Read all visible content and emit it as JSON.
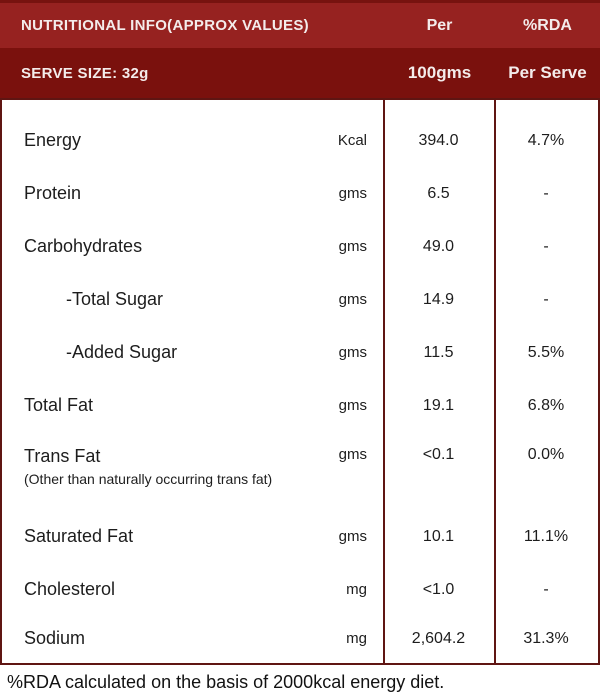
{
  "header": {
    "row1": {
      "title": "NUTRITIONAL INFO(APPROX VALUES)",
      "col2": "Per",
      "col3": "%RDA"
    },
    "row2": {
      "title": "SERVE SIZE: 32g",
      "col2": "100gms",
      "col3": "Per Serve"
    }
  },
  "rows": [
    {
      "label": "Energy",
      "unit": "Kcal",
      "per100": "394.0",
      "rda": "4.7%"
    },
    {
      "label": "Protein",
      "unit": "gms",
      "per100": "6.5",
      "rda": "-"
    },
    {
      "label": "Carbohydrates",
      "unit": "gms",
      "per100": "49.0",
      "rda": "-"
    },
    {
      "label": "-Total Sugar",
      "unit": "gms",
      "per100": "14.9",
      "rda": "-"
    },
    {
      "label": "-Added Sugar",
      "unit": "gms",
      "per100": "11.5",
      "rda": "5.5%"
    },
    {
      "label": "Total Fat",
      "unit": "gms",
      "per100": "19.1",
      "rda": "6.8%"
    },
    {
      "label": "Trans Fat",
      "note": "(Other than naturally occurring trans fat)",
      "unit": "gms",
      "per100": "<0.1",
      "rda": "0.0%"
    },
    {
      "label": "Saturated Fat",
      "unit": "gms",
      "per100": "10.1",
      "rda": "11.1%"
    },
    {
      "label": "Cholesterol",
      "unit": "mg",
      "per100": "<1.0",
      "rda": "-"
    },
    {
      "label": "Sodium",
      "unit": "mg",
      "per100": "2,604.2",
      "rda": "31.3%"
    }
  ],
  "footer": {
    "note": "%RDA calculated on the basis of 2000kcal energy diet."
  },
  "colors": {
    "header_row1_bg": "#962220",
    "header_row2_bg": "#7a110d",
    "border": "#5f1512",
    "header_text": "#f4eceb",
    "body_text": "#1d1d1d"
  }
}
